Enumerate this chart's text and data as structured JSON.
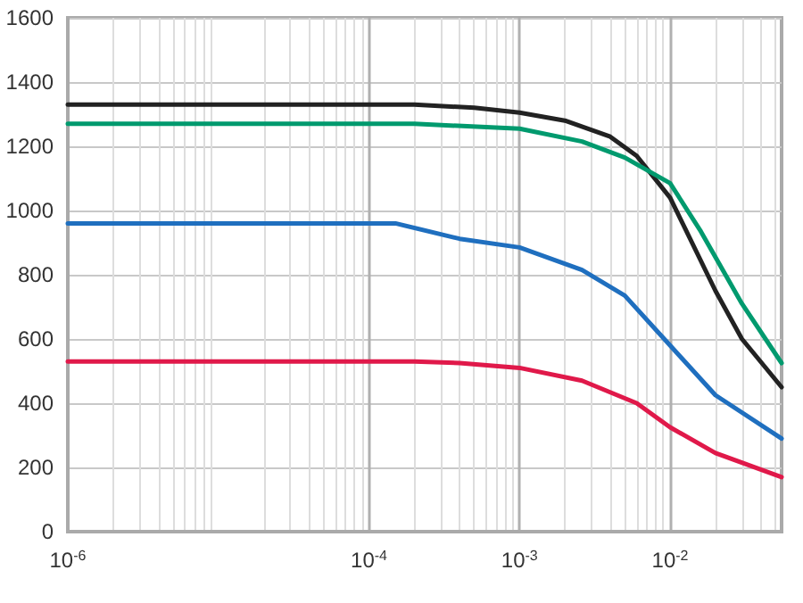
{
  "chart_data": {
    "type": "line",
    "log": "x",
    "grid": true,
    "marker": "none",
    "line_style": "solid",
    "xlim": [
      1e-06,
      0.055
    ],
    "xticks": [
      {
        "value": 1e-06,
        "label": "10$^{-6}$"
      },
      {
        "value": 0.0001,
        "label": "10$^{-4}$"
      },
      {
        "value": 0.001,
        "label": "10$^{-3}$"
      },
      {
        "value": 0.01,
        "label": "10$^{-2}$"
      }
    ],
    "ylim": [
      0,
      1600
    ],
    "yticks": [
      0,
      200,
      400,
      600,
      800,
      1000,
      1200,
      1400,
      1600
    ],
    "series": [
      {
        "color": "#222222",
        "x": [
          1e-06,
          0.0002,
          0.0005,
          0.001,
          0.002,
          0.004,
          0.006,
          0.01,
          0.02,
          0.03,
          0.055
        ],
        "values": [
          1330,
          1330,
          1320,
          1305,
          1280,
          1230,
          1170,
          1040,
          750,
          600,
          450
        ]
      },
      {
        "color": "#009a6e",
        "x": [
          1e-06,
          0.0002,
          0.001,
          0.0026,
          0.005,
          0.01,
          0.016,
          0.03,
          0.055
        ],
        "values": [
          1270,
          1270,
          1255,
          1215,
          1165,
          1085,
          935,
          710,
          525
        ]
      },
      {
        "color": "#1f6fbf",
        "x": [
          1e-06,
          0.00015,
          0.0004,
          0.001,
          0.0026,
          0.005,
          0.01,
          0.02,
          0.055
        ],
        "values": [
          960,
          960,
          912,
          885,
          815,
          735,
          580,
          425,
          290
        ]
      },
      {
        "color": "#e0194a",
        "x": [
          1e-06,
          0.0002,
          0.0004,
          0.001,
          0.0026,
          0.006,
          0.01,
          0.02,
          0.055
        ],
        "values": [
          530,
          530,
          525,
          510,
          470,
          400,
          325,
          245,
          170
        ]
      }
    ]
  }
}
